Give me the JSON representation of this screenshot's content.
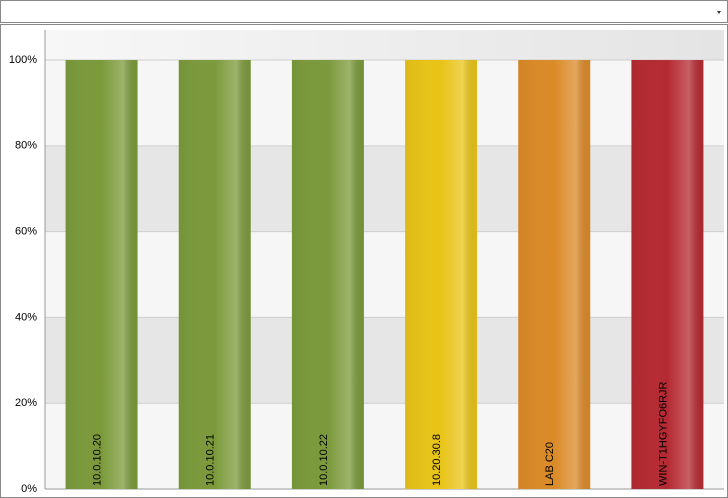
{
  "chart_data": {
    "type": "bar",
    "categories": [
      "10.0.10.20",
      "10.0.10.21",
      "10.0.10.22",
      "10.20.30.8",
      "LAB C20",
      "WIN-T1HGYFO6RJR"
    ],
    "values": [
      100,
      100,
      100,
      100,
      100,
      100
    ],
    "colors": [
      "#7b9a3b",
      "#7b9a3b",
      "#7b9a3b",
      "#e8c417",
      "#db8a27",
      "#b52a32"
    ],
    "ylim": [
      0,
      107
    ],
    "yticks": [
      {
        "value": 0,
        "label": "0%"
      },
      {
        "value": 20,
        "label": "20%"
      },
      {
        "value": 40,
        "label": "40%"
      },
      {
        "value": 60,
        "label": "60%"
      },
      {
        "value": 80,
        "label": "80%"
      },
      {
        "value": 100,
        "label": "100%"
      }
    ],
    "grid": true
  }
}
